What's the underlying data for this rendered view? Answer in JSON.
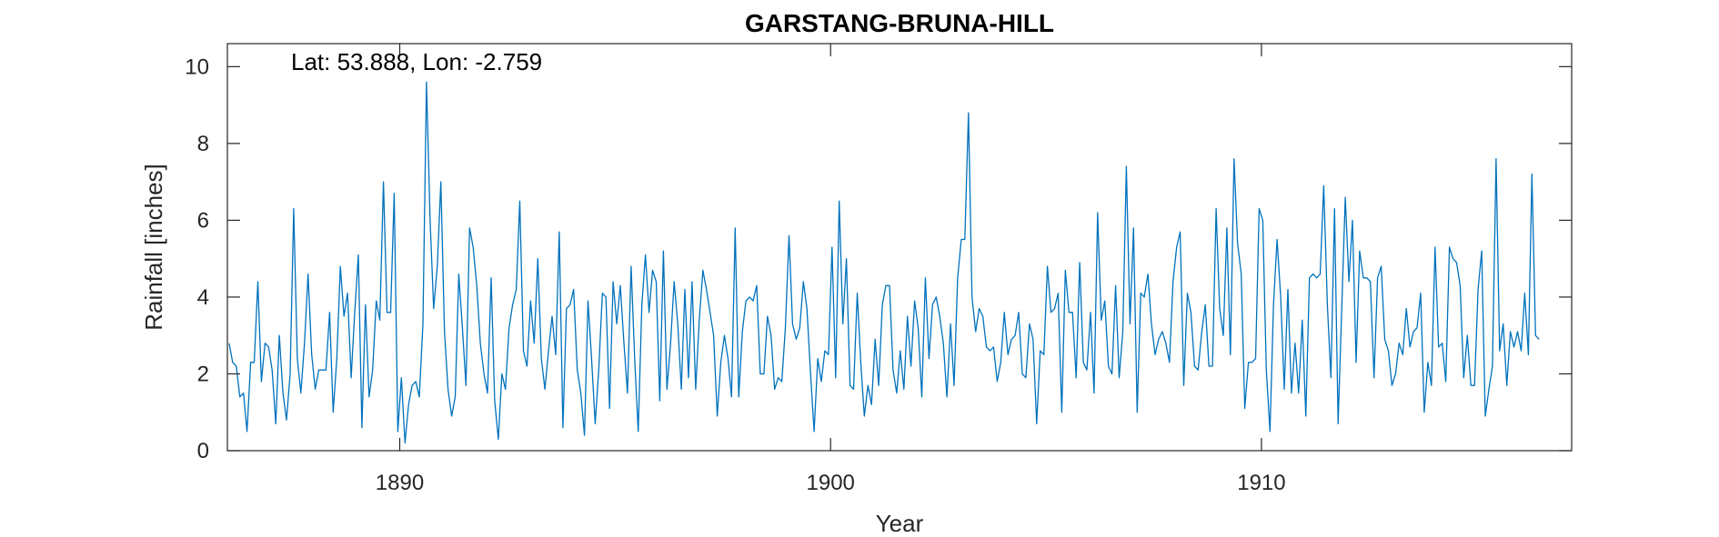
{
  "chart_data": {
    "type": "line",
    "title": "GARSTANG-BRUNA-HILL",
    "annotation": "Lat: 53.888, Lon: -2.759",
    "xlabel": "Year",
    "ylabel": "Rainfall [inches]",
    "xlim": [
      1886,
      1917.2
    ],
    "ylim": [
      0,
      10.6
    ],
    "xticks": [
      1890,
      1900,
      1910
    ],
    "yticks": [
      0,
      2,
      4,
      6,
      8,
      10
    ],
    "grid": false,
    "line_color": "#0072BD",
    "series": [
      {
        "start_year": 1886.04,
        "step": 0.0833,
        "values": [
          2.8,
          2.3,
          2.2,
          1.4,
          1.5,
          0.5,
          2.3,
          2.3,
          4.4,
          1.8,
          2.8,
          2.7,
          2.1,
          0.7,
          3.0,
          1.5,
          0.8,
          2.0,
          6.3,
          2.4,
          1.5,
          2.8,
          4.6,
          2.5,
          1.6,
          2.1,
          2.1,
          2.1,
          3.6,
          1.0,
          2.4,
          4.8,
          3.5,
          4.1,
          1.9,
          3.6,
          5.1,
          0.6,
          3.8,
          1.4,
          2.1,
          3.9,
          3.4,
          7.0,
          3.6,
          3.6,
          6.7,
          0.5,
          1.9,
          0.2,
          1.2,
          1.7,
          1.8,
          1.4,
          3.3,
          9.6,
          6.0,
          3.7,
          4.8,
          7.0,
          3.1,
          1.6,
          0.9,
          1.4,
          4.6,
          3.2,
          1.7,
          5.8,
          5.3,
          4.3,
          2.8,
          2.0,
          1.5,
          4.5,
          1.3,
          0.3,
          2.0,
          1.6,
          3.2,
          3.8,
          4.2,
          6.5,
          2.6,
          2.2,
          3.9,
          2.8,
          5.0,
          2.4,
          1.6,
          2.6,
          3.5,
          2.5,
          5.7,
          0.6,
          3.7,
          3.8,
          4.2,
          2.1,
          1.5,
          0.4,
          3.9,
          2.4,
          0.7,
          2.1,
          4.1,
          4.0,
          1.1,
          4.4,
          3.3,
          4.3,
          2.8,
          1.5,
          4.8,
          2.4,
          0.5,
          3.8,
          5.1,
          3.6,
          4.7,
          4.4,
          1.3,
          5.2,
          1.6,
          2.8,
          4.4,
          3.3,
          1.6,
          4.2,
          1.9,
          4.4,
          1.6,
          3.4,
          4.7,
          4.2,
          3.6,
          3.0,
          0.9,
          2.3,
          3.0,
          2.4,
          1.4,
          5.8,
          1.4,
          3.1,
          3.9,
          4.0,
          3.9,
          4.3,
          2.0,
          2.0,
          3.5,
          3.0,
          1.6,
          1.9,
          1.8,
          3.2,
          5.6,
          3.3,
          2.9,
          3.2,
          4.4,
          3.7,
          2.0,
          0.5,
          2.4,
          1.8,
          2.6,
          2.5,
          5.3,
          1.9,
          6.5,
          3.3,
          5.0,
          1.7,
          1.6,
          4.1,
          2.3,
          0.9,
          1.7,
          1.2,
          2.9,
          1.7,
          3.8,
          4.3,
          4.3,
          2.1,
          1.5,
          2.6,
          1.6,
          3.5,
          2.2,
          3.9,
          3.2,
          1.4,
          4.5,
          2.4,
          3.8,
          4.0,
          3.5,
          2.8,
          1.4,
          3.3,
          1.7,
          4.5,
          5.5,
          5.5,
          8.8,
          4.0,
          3.1,
          3.7,
          3.5,
          2.7,
          2.6,
          2.7,
          1.8,
          2.3,
          3.6,
          2.5,
          2.9,
          3.0,
          3.6,
          2.0,
          1.9,
          3.3,
          2.9,
          0.7,
          2.6,
          2.5,
          4.8,
          3.6,
          3.7,
          4.1,
          1.0,
          4.7,
          3.6,
          3.6,
          1.9,
          4.9,
          2.3,
          2.1,
          3.6,
          1.5,
          6.2,
          3.4,
          3.9,
          2.2,
          2.0,
          4.3,
          1.9,
          3.1,
          7.4,
          3.3,
          5.8,
          1.0,
          4.1,
          4.0,
          4.6,
          3.3,
          2.5,
          2.9,
          3.1,
          2.8,
          2.3,
          4.4,
          5.3,
          5.7,
          1.7,
          4.1,
          3.6,
          2.2,
          2.1,
          3.1,
          3.8,
          2.2,
          2.2,
          6.3,
          3.7,
          3.0,
          5.8,
          2.5,
          7.6,
          5.4,
          4.6,
          1.1,
          2.3,
          2.3,
          2.4,
          6.3,
          6.0,
          2.1,
          0.5,
          3.8,
          5.5,
          4.0,
          1.6,
          4.2,
          1.5,
          2.8,
          1.5,
          3.4,
          0.9,
          4.5,
          4.6,
          4.5,
          4.6,
          6.9,
          3.8,
          1.9,
          6.3,
          0.7,
          3.7,
          6.6,
          4.4,
          6.0,
          2.3,
          5.2,
          4.5,
          4.5,
          4.4,
          1.9,
          4.5,
          4.8,
          2.9,
          2.6,
          1.7,
          2.0,
          2.8,
          2.5,
          3.7,
          2.7,
          3.1,
          3.2,
          4.1,
          1.0,
          2.3,
          1.7,
          5.3,
          2.7,
          2.8,
          1.8,
          5.3,
          5.0,
          4.9,
          4.3,
          1.9,
          3.0,
          1.7,
          1.7,
          4.2,
          5.2,
          0.9,
          1.6,
          2.2,
          7.6,
          2.6,
          3.3,
          1.7,
          3.1,
          2.7,
          3.1,
          2.6,
          4.1,
          2.5,
          7.2,
          3.0,
          2.9
        ]
      }
    ]
  }
}
